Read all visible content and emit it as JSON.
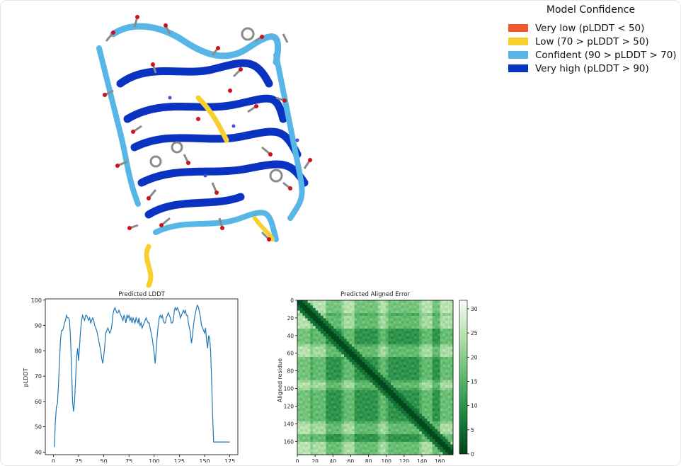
{
  "legend": {
    "title": "Model Confidence",
    "items": [
      {
        "label": "Very low (pLDDT < 50)",
        "color": "#f0582d"
      },
      {
        "label": "Low (70 > pLDDT > 50)",
        "color": "#f8d02d"
      },
      {
        "label": "Confident (90 > pLDDT > 70)",
        "color": "#57b6e6"
      },
      {
        "label": "Very high (pLDDT > 90)",
        "color": "#0a33c2"
      }
    ]
  },
  "structure": {
    "icon": "protein-3d-structure-icon"
  },
  "chart_data": [
    {
      "type": "line",
      "title": "Predicted LDDT",
      "xlabel": "",
      "ylabel": "pLDDT",
      "xlim": [
        -8,
        183
      ],
      "ylim": [
        39,
        100.5
      ],
      "xticks": [
        0,
        25,
        50,
        75,
        100,
        125,
        150,
        175
      ],
      "yticks": [
        40,
        50,
        60,
        70,
        80,
        90,
        100
      ],
      "color": "#1f77b4",
      "series": [
        {
          "x": [
            1,
            2,
            3,
            4,
            5,
            6,
            7,
            8,
            9,
            10,
            11,
            12,
            13,
            14,
            15,
            16,
            17,
            18,
            19,
            20,
            21,
            22,
            23,
            24,
            25,
            26,
            27,
            28,
            29,
            30,
            31,
            32,
            33,
            34,
            35,
            36,
            37,
            38,
            39,
            40,
            41,
            42,
            43,
            44,
            45,
            46,
            47,
            48,
            49,
            50,
            51,
            52,
            53,
            54,
            55,
            56,
            57,
            58,
            59,
            60,
            61,
            62,
            63,
            64,
            65,
            66,
            67,
            68,
            69,
            70,
            71,
            72,
            73,
            74,
            75,
            76,
            77,
            78,
            79,
            80,
            81,
            82,
            83,
            84,
            85,
            86,
            87,
            88,
            89,
            90,
            91,
            92,
            93,
            94,
            95,
            96,
            97,
            98,
            99,
            100,
            101,
            102,
            103,
            104,
            105,
            106,
            107,
            108,
            109,
            110,
            111,
            112,
            113,
            114,
            115,
            116,
            117,
            118,
            119,
            120,
            121,
            122,
            123,
            124,
            125,
            126,
            127,
            128,
            129,
            130,
            131,
            132,
            133,
            134,
            135,
            136,
            137,
            138,
            139,
            140,
            141,
            142,
            143,
            144,
            145,
            146,
            147,
            148,
            149,
            150,
            151,
            152,
            153,
            154,
            155,
            156,
            157,
            158,
            159,
            160,
            161,
            162,
            163,
            164,
            165,
            166,
            167,
            168,
            169,
            170,
            171,
            172,
            173,
            174,
            175
          ],
          "y": [
            42,
            52,
            58,
            59,
            66,
            75,
            84,
            88,
            88,
            89,
            91,
            92,
            94,
            93,
            93,
            92,
            85,
            74,
            60,
            56,
            60,
            68,
            77,
            81,
            76,
            82,
            88,
            92,
            94,
            93,
            92,
            94,
            94,
            93,
            92,
            93,
            91,
            92,
            93,
            92,
            90,
            89,
            88,
            86,
            84,
            82,
            80,
            77,
            75,
            78,
            82,
            87,
            88,
            89,
            88,
            87,
            88,
            90,
            94,
            96,
            97,
            96,
            95,
            95,
            96,
            95,
            94,
            93,
            92,
            94,
            93,
            91,
            94,
            93,
            94,
            92,
            93,
            91,
            93,
            92,
            91,
            93,
            92,
            91,
            93,
            90,
            91,
            89,
            90,
            91,
            92,
            93,
            92,
            91,
            91,
            89,
            87,
            85,
            82,
            79,
            75,
            80,
            86,
            90,
            93,
            94,
            93,
            94,
            92,
            91,
            91,
            93,
            94,
            95,
            94,
            93,
            91,
            91,
            92,
            96,
            97,
            96,
            97,
            96,
            95,
            93,
            94,
            95,
            96,
            95,
            96,
            94,
            94,
            91,
            89,
            87,
            83,
            86,
            90,
            93,
            95,
            97,
            98,
            97,
            95,
            93,
            90,
            89,
            88,
            87,
            89,
            84,
            81,
            86,
            85,
            80,
            68,
            54,
            44,
            44,
            44,
            44,
            44,
            44,
            44,
            44,
            44,
            44,
            44,
            44,
            44,
            44,
            44,
            44,
            44
          ]
        }
      ]
    },
    {
      "type": "heatmap",
      "title": "Predicted Aligned Error",
      "xlabel": "",
      "ylabel": "Aligned residue",
      "n_residues": 175,
      "xticks": [
        0,
        20,
        40,
        60,
        80,
        100,
        120,
        140,
        160
      ],
      "yticks": [
        0,
        20,
        40,
        60,
        80,
        100,
        120,
        140,
        160
      ],
      "colorbar": {
        "min": 0,
        "max": 31.75,
        "ticks": [
          0,
          5,
          10,
          15,
          20,
          25,
          30
        ]
      },
      "colormap": "Greens_r"
    }
  ]
}
